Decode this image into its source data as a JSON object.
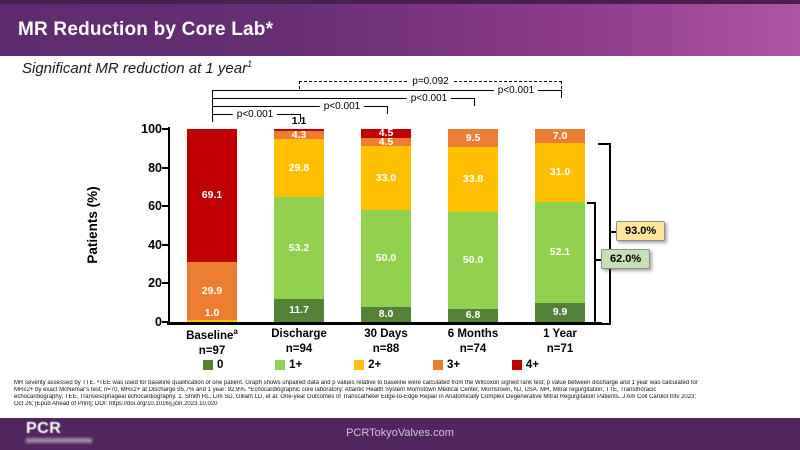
{
  "header": {
    "title": "MR Reduction by Core Lab*"
  },
  "subtitle": {
    "text": "Significant MR reduction at 1 year",
    "sup": "1"
  },
  "chart_data": {
    "type": "bar",
    "stacked": true,
    "title": "MR Reduction by Core Lab*",
    "xlabel": "",
    "ylabel": "Patients (%)",
    "ylim": [
      0,
      100
    ],
    "yticks": [
      0,
      20,
      40,
      60,
      80,
      100
    ],
    "grid": false,
    "legend_position": "bottom",
    "grades": [
      {
        "name": "0",
        "color": "#538135"
      },
      {
        "name": "1+",
        "color": "#92D050"
      },
      {
        "name": "2+",
        "color": "#FFC000"
      },
      {
        "name": "3+",
        "color": "#ED7D31"
      },
      {
        "name": "4+",
        "color": "#C00000"
      }
    ],
    "categories": [
      {
        "label": "Baseline",
        "sup": "a"
      },
      {
        "label": "Discharge",
        "sup": ""
      },
      {
        "label": "30 Days",
        "sup": ""
      },
      {
        "label": "6 Months",
        "sup": ""
      },
      {
        "label": "1 Year",
        "sup": ""
      }
    ],
    "n_labels": [
      "n=97",
      "n=94",
      "n=88",
      "n=74",
      "n=71"
    ],
    "series": [
      {
        "name": "0",
        "values": [
          0,
          11.7,
          8.0,
          6.8,
          9.9
        ]
      },
      {
        "name": "1+",
        "values": [
          0,
          53.2,
          50.0,
          50.0,
          52.1
        ]
      },
      {
        "name": "2+",
        "values": [
          1.0,
          29.8,
          33.0,
          33.8,
          31.0
        ]
      },
      {
        "name": "3+",
        "values": [
          29.9,
          4.3,
          4.5,
          9.5,
          7.0
        ]
      },
      {
        "name": "4+",
        "values": [
          69.1,
          1.1,
          4.5,
          0,
          0
        ]
      }
    ],
    "p_brackets": [
      {
        "from": 0,
        "to": 1,
        "label": "p<0.001",
        "style": "solid"
      },
      {
        "from": 0,
        "to": 2,
        "label": "p<0.001",
        "style": "solid"
      },
      {
        "from": 0,
        "to": 3,
        "label": "p<0.001",
        "style": "solid"
      },
      {
        "from": 0,
        "to": 4,
        "label": "p<0.001",
        "style": "solid"
      },
      {
        "from": 1,
        "to": 4,
        "label": "p=0.092",
        "style": "dashed"
      }
    ],
    "callouts": [
      {
        "label": "93.0%",
        "value": 93.0,
        "bg": "#FFE699"
      },
      {
        "label": "62.0%",
        "value": 62.0,
        "bg": "#C6E0B4"
      }
    ]
  },
  "footnote_lines": [
    "MR severity assessed by TTE. ᵃTEE was used for baseline qualification of one patient. Graph shows unpaired data and p values relative to baseline were calculated from the Wilcoxon signed rank test; p value between discharge and 1 year was calculated for",
    "MR≤2+ by exact McNemar's test; n=70, MR≤2+ at Discharge 95.7% and 1 year: 92.9%. *Echocardiographic core laboratory: Atlantic Health System Morristown Medical Center, Morristown, NJ, USA. MR, Mitral regurgitation; TTE, Transthoracic",
    "echocardiography; TEE, Transesophageal echocardiography. 1. Smith RL, Lim SD, Gillam LD, et al. One-year Outcomes of Transcatheter Edge-to-Edge Repair in Anatomically Complex Degenerative Mitral Regurgitation Patients. J Am Coll Cardiol Intv 2023;",
    "Oct 26; [Epub Ahead of Print]; DOI: https://doi.org/10.1016/j.jcin.2023.10.020"
  ],
  "footer": {
    "logo": "PCR",
    "url": "PCRTokyoValves.com"
  }
}
